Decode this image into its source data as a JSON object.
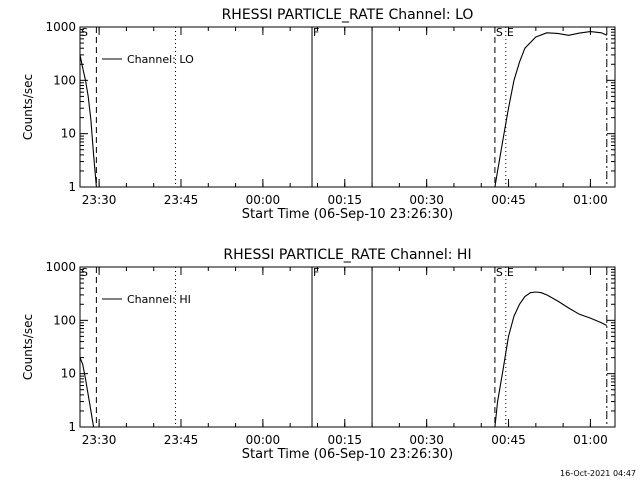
{
  "chart_data": [
    {
      "type": "line",
      "title": "RHESSI PARTICLE_RATE Channel: LO",
      "xlabel": "Start Time (06-Sep-10 23:26:30)",
      "ylabel": "Counts/sec",
      "yscale": "log",
      "ylim": [
        1,
        1000
      ],
      "yticks": [
        "1",
        "10",
        "100",
        "1000"
      ],
      "xticks": [
        "23:30",
        "23:45",
        "00:00",
        "00:15",
        "00:30",
        "00:45",
        "01:00"
      ],
      "legend": "Channel: LO",
      "legend_position": "top-left",
      "markers": [
        {
          "label": "S",
          "time": "23:26:30",
          "style": "dashed"
        },
        {
          "label": "",
          "time": "23:29:30",
          "style": "dashed"
        },
        {
          "label": "",
          "time": "23:44:00",
          "style": "dotted"
        },
        {
          "label": "F",
          "time": "00:09:00",
          "style": "solid"
        },
        {
          "label": "",
          "time": "00:20:00",
          "style": "solid"
        },
        {
          "label": "S",
          "time": "00:42:30",
          "style": "dashed"
        },
        {
          "label": "E",
          "time": "00:44:30",
          "style": "dotted"
        },
        {
          "label": "",
          "time": "01:03:00",
          "style": "dashdot"
        }
      ],
      "series": [
        {
          "name": "Channel: LO",
          "segments": [
            {
              "x": [
                "23:26:30",
                "23:27:00",
                "23:27:30",
                "23:28:00",
                "23:28:30",
                "23:29:00",
                "23:29:30"
              ],
              "y": [
                300,
                170,
                100,
                50,
                18,
                4,
                1
              ]
            },
            {
              "x": [
                "00:42:30",
                "00:43:00",
                "00:44:00",
                "00:45:00",
                "00:46:00",
                "00:47:00",
                "00:48:00",
                "00:50:00",
                "00:52:00",
                "00:54:00",
                "00:56:00",
                "00:58:00",
                "01:00:00",
                "01:02:00",
                "01:03:00"
              ],
              "y": [
                1,
                2,
                8,
                30,
                100,
                220,
                400,
                650,
                780,
                760,
                700,
                770,
                820,
                780,
                700
              ]
            }
          ]
        }
      ]
    },
    {
      "type": "line",
      "title": "RHESSI PARTICLE_RATE Channel: HI",
      "xlabel": "Start Time (06-Sep-10 23:26:30)",
      "ylabel": "Counts/sec",
      "yscale": "log",
      "ylim": [
        1,
        1000
      ],
      "yticks": [
        "1",
        "10",
        "100",
        "1000"
      ],
      "xticks": [
        "23:30",
        "23:45",
        "00:00",
        "00:15",
        "00:30",
        "00:45",
        "01:00"
      ],
      "legend": "Channel: HI",
      "legend_position": "top-left",
      "markers": [
        {
          "label": "S",
          "time": "23:26:30",
          "style": "dashed"
        },
        {
          "label": "",
          "time": "23:29:30",
          "style": "dashed"
        },
        {
          "label": "",
          "time": "23:44:00",
          "style": "dotted"
        },
        {
          "label": "F",
          "time": "00:09:00",
          "style": "solid"
        },
        {
          "label": "",
          "time": "00:20:00",
          "style": "solid"
        },
        {
          "label": "S",
          "time": "00:42:30",
          "style": "dashed"
        },
        {
          "label": "E",
          "time": "00:44:30",
          "style": "dotted"
        },
        {
          "label": "",
          "time": "01:03:00",
          "style": "dashdot"
        }
      ],
      "series": [
        {
          "name": "Channel: HI",
          "segments": [
            {
              "x": [
                "23:26:30",
                "23:27:00",
                "23:27:30",
                "23:28:00",
                "23:28:30",
                "23:29:00"
              ],
              "y": [
                20,
                15,
                8,
                4,
                2,
                1
              ]
            },
            {
              "x": [
                "00:42:30",
                "00:43:00",
                "00:44:00",
                "00:45:00",
                "00:46:00",
                "00:47:00",
                "00:48:00",
                "00:49:00",
                "00:50:00",
                "00:51:00",
                "00:52:00",
                "00:54:00",
                "00:56:00",
                "00:58:00",
                "01:00:00",
                "01:02:00",
                "01:03:00"
              ],
              "y": [
                1,
                3,
                12,
                50,
                120,
                200,
                280,
                330,
                340,
                330,
                300,
                230,
                170,
                130,
                110,
                90,
                80
              ]
            }
          ]
        }
      ]
    }
  ],
  "footer": {
    "timestamp": "16-Oct-2021 04:47"
  }
}
